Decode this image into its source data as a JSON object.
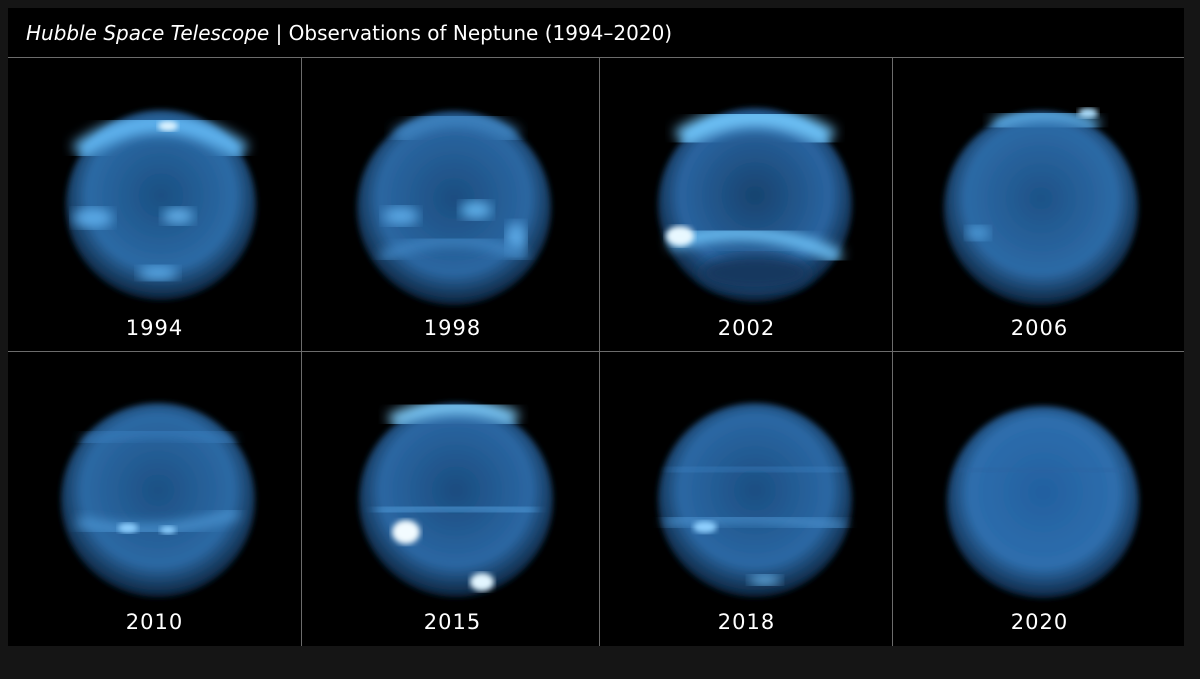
{
  "title": {
    "main": "Hubble Space Telescope",
    "separator": "|",
    "sub": "Observations of Neptune (1994–2020)"
  },
  "panels": [
    {
      "year": "1994"
    },
    {
      "year": "1998"
    },
    {
      "year": "2002"
    },
    {
      "year": "2006"
    },
    {
      "year": "2010"
    },
    {
      "year": "2015"
    },
    {
      "year": "2018"
    },
    {
      "year": "2020"
    }
  ],
  "colors": {
    "background": "#000000",
    "frame_border": "#151515",
    "divider": "#6c6c6c",
    "planet_dark": "#0d2a4a",
    "planet_mid": "#2f6fa8",
    "cloud": "#8fd4ff"
  }
}
